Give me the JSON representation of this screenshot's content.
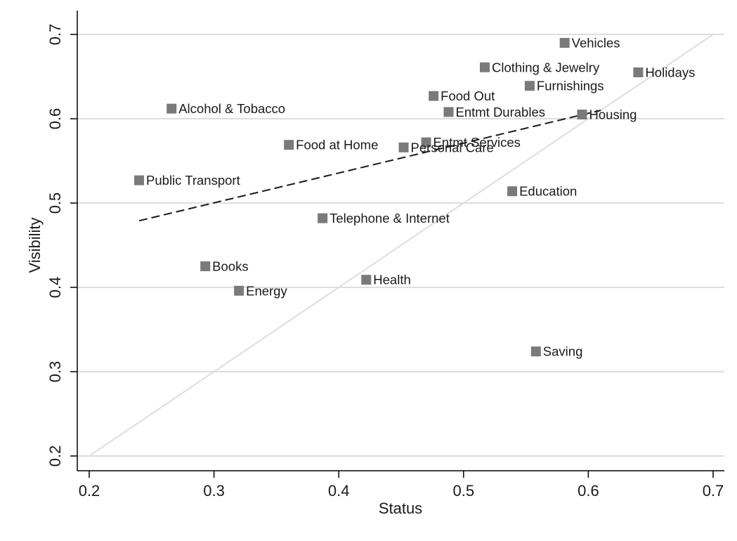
{
  "chart_data": {
    "type": "scatter",
    "xlabel": "Status",
    "ylabel": "Visibility",
    "xlim": [
      0.2,
      0.7
    ],
    "ylim": [
      0.2,
      0.7
    ],
    "xticks": [
      "0.2",
      "0.3",
      "0.4",
      "0.5",
      "0.6",
      "0.7"
    ],
    "yticks": [
      "0.2",
      "0.3",
      "0.4",
      "0.5",
      "0.6",
      "0.7"
    ],
    "grid": "horizontal",
    "points": [
      {
        "label": "Vehicles",
        "x": 0.581,
        "y": 0.69
      },
      {
        "label": "Clothing & Jewelry",
        "x": 0.517,
        "y": 0.661
      },
      {
        "label": "Holidays",
        "x": 0.64,
        "y": 0.655
      },
      {
        "label": "Furnishings",
        "x": 0.553,
        "y": 0.639
      },
      {
        "label": "Food Out",
        "x": 0.476,
        "y": 0.627
      },
      {
        "label": "Alcohol & Tobacco",
        "x": 0.266,
        "y": 0.612
      },
      {
        "label": "Entmt Durables",
        "x": 0.488,
        "y": 0.608
      },
      {
        "label": "Housing",
        "x": 0.595,
        "y": 0.605
      },
      {
        "label": "Entmt Services",
        "x": 0.47,
        "y": 0.572
      },
      {
        "label": "Food at Home",
        "x": 0.36,
        "y": 0.569
      },
      {
        "label": "Personal Care",
        "x": 0.452,
        "y": 0.566
      },
      {
        "label": "Public Transport",
        "x": 0.24,
        "y": 0.527
      },
      {
        "label": "Education",
        "x": 0.539,
        "y": 0.514
      },
      {
        "label": "Telephone & Internet",
        "x": 0.387,
        "y": 0.482
      },
      {
        "label": "Books",
        "x": 0.293,
        "y": 0.425
      },
      {
        "label": "Health",
        "x": 0.422,
        "y": 0.409
      },
      {
        "label": "Energy",
        "x": 0.32,
        "y": 0.396
      },
      {
        "label": "Saving",
        "x": 0.558,
        "y": 0.324
      }
    ],
    "fit_line": {
      "x": [
        0.24,
        0.61
      ],
      "y": [
        0.479,
        0.61
      ],
      "style": "dashed"
    },
    "reference_line": {
      "x": [
        0.2,
        0.7
      ],
      "y": [
        0.2,
        0.7
      ],
      "style": "45-degree"
    },
    "colors": {
      "marker": "#7a7a7a",
      "grid": "#dedede",
      "reference": "#dedede",
      "fit": "#1a1a1a",
      "axis": "#000000"
    }
  }
}
